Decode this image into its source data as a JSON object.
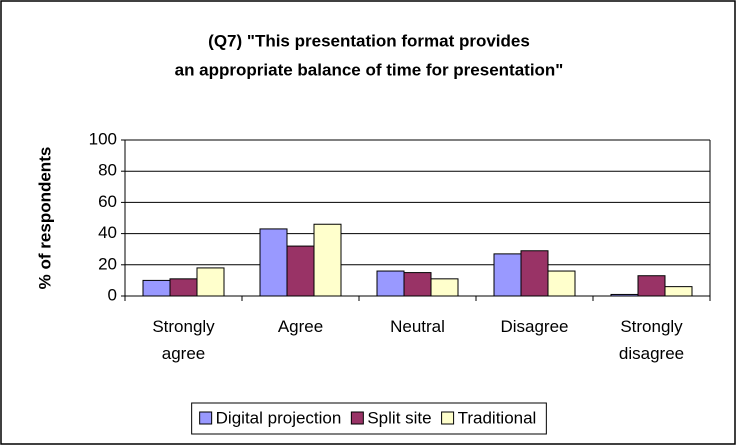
{
  "chart_data": {
    "type": "bar",
    "title": [
      "(Q7) \"This presentation format provides",
      "an appropriate balance of time for presentation\""
    ],
    "ylabel": "% of respondents",
    "categories": [
      "Strongly agree",
      "Agree",
      "Neutral",
      "Disagree",
      "Strongly disagree"
    ],
    "series": [
      {
        "name": "Digital projection",
        "color": "#9999ff",
        "values": [
          10,
          43,
          16,
          27,
          1
        ]
      },
      {
        "name": "Split site",
        "color": "#993366",
        "values": [
          11,
          32,
          15,
          29,
          13
        ]
      },
      {
        "name": "Traditional",
        "color": "#ffffcc",
        "values": [
          18,
          46,
          11,
          16,
          6
        ]
      }
    ],
    "ylim": [
      0,
      100
    ],
    "yticks": [
      0,
      20,
      40,
      60,
      80,
      100
    ],
    "grid": true,
    "legend": "bottom"
  }
}
